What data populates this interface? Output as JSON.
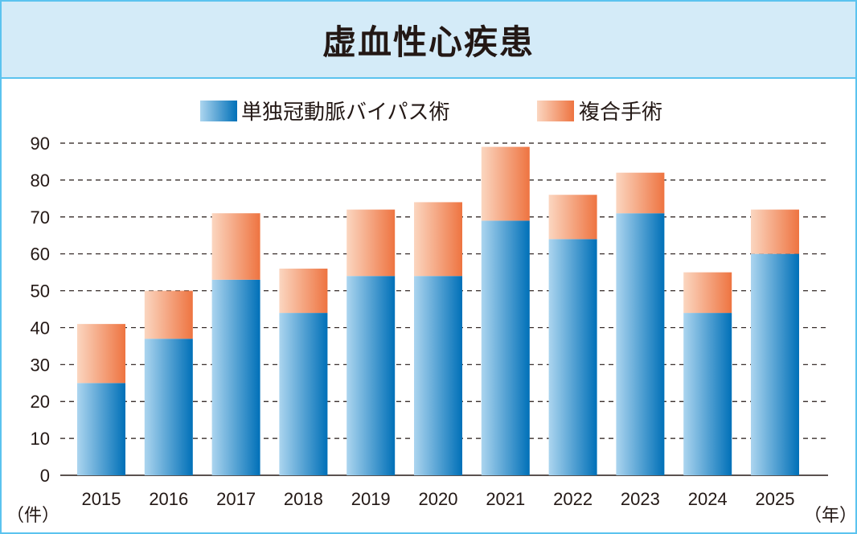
{
  "chart_data": {
    "type": "bar",
    "stacked": true,
    "title": "虚血性心疾患",
    "categories": [
      "2015",
      "2016",
      "2017",
      "2018",
      "2019",
      "2020",
      "2021",
      "2022",
      "2023",
      "2024",
      "2025"
    ],
    "series": [
      {
        "name": "単独冠動脈バイパス術",
        "values": [
          25,
          37,
          53,
          44,
          54,
          54,
          69,
          64,
          71,
          44,
          60
        ],
        "colors": [
          "#acd5ef",
          "#0070b8"
        ]
      },
      {
        "name": "複合手術",
        "values": [
          16,
          13,
          18,
          12,
          18,
          20,
          20,
          12,
          11,
          11,
          12
        ],
        "colors": [
          "#fbd6c0",
          "#ee7441"
        ]
      }
    ],
    "ylim": [
      0,
      90
    ],
    "yticks": [
      "0",
      "10",
      "20",
      "30",
      "40",
      "50",
      "60",
      "70",
      "80",
      "90"
    ],
    "ylabel": "（件）",
    "xlabel": "（年）",
    "grid": "dashed-horizontal",
    "legend": "top-center"
  }
}
